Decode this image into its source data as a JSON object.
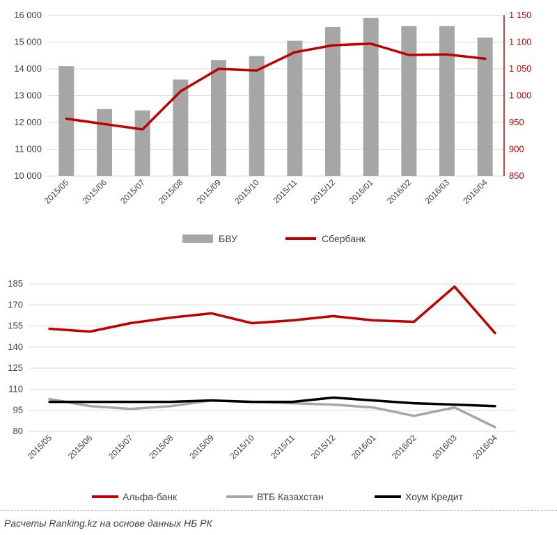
{
  "chart_data": [
    {
      "type": "bar+line",
      "title": "",
      "categories": [
        "2015/05",
        "2015/06",
        "2015/07",
        "2015/08",
        "2015/09",
        "2015/10",
        "2015/11",
        "2015/12",
        "2016/01",
        "2016/02",
        "2016/03",
        "2016/04"
      ],
      "series": [
        {
          "name": "БВУ",
          "type": "bar",
          "axis": "left",
          "color": "#a6a6a6",
          "values": [
            14100,
            12500,
            12450,
            13600,
            14330,
            14480,
            15050,
            15560,
            15900,
            15600,
            15600,
            15170
          ]
        },
        {
          "name": "Сбербанк",
          "type": "line",
          "axis": "right",
          "color": "#c00000",
          "values": [
            957,
            947,
            937,
            1008,
            1050,
            1047,
            1081,
            1094,
            1097,
            1076,
            1077,
            1069
          ]
        }
      ],
      "y_left": {
        "min": 10000,
        "max": 16000,
        "step": 1000,
        "tick_labels": [
          "10 000",
          "11 000",
          "12 000",
          "13 000",
          "14 000",
          "15 000",
          "16 000"
        ]
      },
      "y_right": {
        "min": 850,
        "max": 1150,
        "step": 50,
        "tick_labels": [
          "850",
          "900",
          "950",
          "1 000",
          "1 050",
          "1 100",
          "1 150"
        ]
      },
      "legend": [
        "БВУ",
        "Сбербанк"
      ],
      "legend_position": "bottom",
      "grid": true
    },
    {
      "type": "line",
      "title": "",
      "categories": [
        "2015/05",
        "2015/06",
        "2015/07",
        "2015/08",
        "2015/09",
        "2015/10",
        "2015/11",
        "2015/12",
        "2016/01",
        "2016/02",
        "2016/03",
        "2016/04"
      ],
      "series": [
        {
          "name": "Альфа-банк",
          "color": "#c00000",
          "values": [
            153,
            151,
            157,
            161,
            164,
            157,
            159,
            162,
            159,
            158,
            183,
            150
          ]
        },
        {
          "name": "ВТБ Казахстан",
          "color": "#a6a6a6",
          "values": [
            103,
            98,
            96,
            98,
            102,
            101,
            100,
            99,
            97,
            91,
            97,
            83
          ]
        },
        {
          "name": "Хоум Кредит",
          "color": "#000000",
          "values": [
            101,
            101,
            101,
            101,
            102,
            101,
            101,
            104,
            102,
            100,
            99,
            98
          ]
        }
      ],
      "y": {
        "min": 80,
        "max": 185,
        "ticks": [
          80,
          95,
          110,
          125,
          140,
          155,
          170,
          185
        ]
      },
      "legend": [
        "Альфа-банк",
        "ВТБ Казахстан",
        "Хоум Кредит"
      ],
      "legend_position": "bottom",
      "grid": true
    }
  ],
  "footer": {
    "source": "Расчеты Ranking.kz на основе данных НБ РК"
  }
}
